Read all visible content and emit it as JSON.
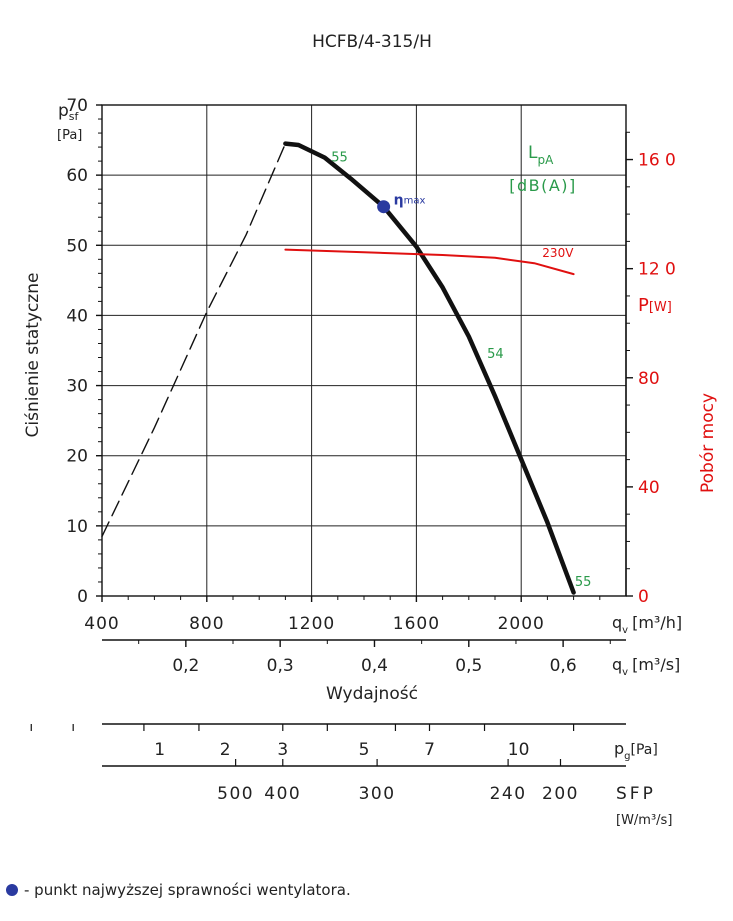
{
  "chart_data": {
    "type": "line",
    "title": "HCFB/4-315/H",
    "ylabel": "Ciśnienie statyczne",
    "ylabel_symbol": "p",
    "ylabel_sub": "sf",
    "ylabel_unit": "[Pa]",
    "ylim": [
      0,
      70
    ],
    "yticks": [
      0,
      10,
      20,
      30,
      40,
      50,
      60,
      70
    ],
    "xlabel": "Wydajność",
    "xlim": [
      400,
      2400
    ],
    "x_ticks_m3h": [
      400,
      800,
      1200,
      1600,
      2000
    ],
    "x_unit_m3h": "[m³/h]",
    "x_ticks_m3s": [
      "0,2",
      "0,3",
      "0,4",
      "0,5",
      "0,6"
    ],
    "x_ticks_m3s_values": [
      0.2,
      0.3,
      0.4,
      0.5,
      0.6
    ],
    "x_unit_m3s": "[m³/s]",
    "q_symbol": "q",
    "q_sub": "v",
    "y2label": "Pobór mocy",
    "y2label_symbol": "P",
    "y2label_unit": "[W]",
    "y2lim": [
      0,
      180
    ],
    "y2ticks": [
      "0",
      "40",
      "80",
      "12 0",
      "16 0"
    ],
    "y2ticks_values": [
      0,
      40,
      80,
      120,
      160
    ],
    "lpa_label": "L",
    "lpa_sub": "pA",
    "lpa_unit": "[dB(A)]",
    "grid": true,
    "series": [
      {
        "name": "",
        "axis": "left",
        "style": "solid",
        "color": "#111111",
        "x": [
          1100,
          1150,
          1250,
          1350,
          1475,
          1600,
          1700,
          1800,
          1900,
          2000,
          2100,
          2200
        ],
        "y": [
          64.5,
          64.3,
          62.5,
          59.5,
          55.5,
          49.8,
          44.0,
          37.0,
          28.5,
          19.5,
          10.5,
          0.5
        ]
      },
      {
        "name": "",
        "axis": "left",
        "style": "dashed",
        "color": "#111111",
        "x": [
          400,
          600,
          800,
          950,
          1100
        ],
        "y": [
          8.5,
          24.0,
          40.5,
          51.5,
          64.5
        ]
      },
      {
        "name": "230V",
        "axis": "right",
        "style": "solid",
        "color": "#e01010",
        "x": [
          1100,
          1400,
          1700,
          1900,
          2050,
          2200
        ],
        "y": [
          127,
          126,
          125,
          124,
          122,
          118
        ]
      }
    ],
    "noise_labels": [
      {
        "text": "55",
        "x": 1275,
        "y": 62.5
      },
      {
        "text": "54",
        "x": 1870,
        "y": 34.5
      },
      {
        "text": "55",
        "x": 2205,
        "y": 2.0
      }
    ],
    "eta_max": {
      "x": 1475,
      "y": 55.5,
      "label": "η",
      "label_sub": "max",
      "color": "#2a3aa0"
    },
    "pressure_scale": {
      "label": "p",
      "label_sub": "g",
      "unit": "[Pa]",
      "ticks": [
        "1",
        "2",
        "3",
        "5",
        "7",
        "10"
      ],
      "tick_x_m3h": [
        620,
        870,
        1090,
        1400,
        1650,
        1990
      ]
    },
    "sfp_scale": {
      "label": "SFP",
      "unit": "[W/m³/s]",
      "ticks": [
        "500",
        "400",
        "300",
        "240",
        "200"
      ],
      "tick_x_m3h": [
        910,
        1090,
        1450,
        1950,
        2150
      ]
    }
  },
  "footnote": "- punkt najwyższej sprawności wentylatora."
}
